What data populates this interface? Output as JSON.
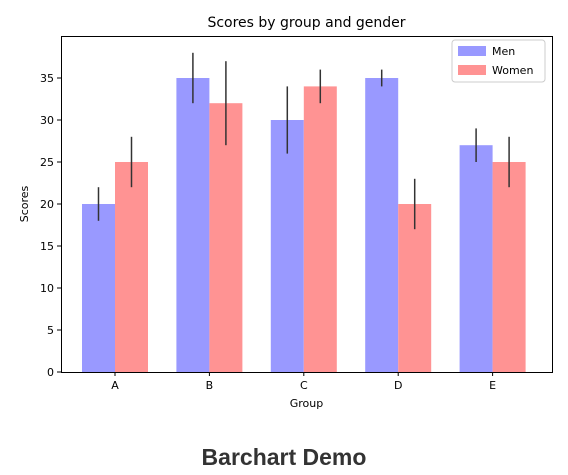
{
  "chart_data": {
    "type": "bar",
    "title": "Scores by group and gender",
    "xlabel": "Group",
    "ylabel": "Scores",
    "categories": [
      "A",
      "B",
      "C",
      "D",
      "E"
    ],
    "ylim": [
      0,
      40
    ],
    "yticks": [
      0,
      5,
      10,
      15,
      20,
      25,
      30,
      35
    ],
    "grid": false,
    "legend_position": "top-right",
    "series": [
      {
        "name": "Men",
        "values": [
          20,
          35,
          30,
          35,
          27
        ],
        "errors": [
          2,
          3,
          4,
          1,
          2
        ],
        "color": "#9999ff"
      },
      {
        "name": "Women",
        "values": [
          25,
          32,
          34,
          20,
          25
        ],
        "errors": [
          3,
          5,
          2,
          3,
          3
        ],
        "color": "#ff9393"
      }
    ],
    "error_bar_color": "#333333"
  },
  "caption": "Barchart Demo"
}
